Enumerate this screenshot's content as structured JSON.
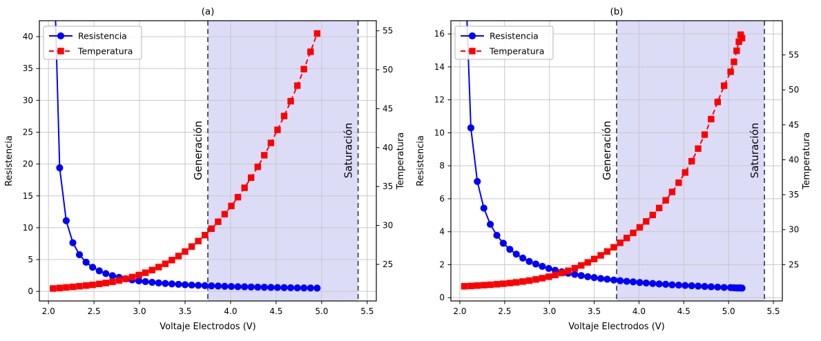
{
  "figure": {
    "background": "#ffffff"
  },
  "colors": {
    "resistencia": "#0000ff",
    "temperatura": "#ff0000",
    "shaded_region": "#dcdcf7",
    "dashed_line": "#3c3c50",
    "grid": "#c8c8c8",
    "spine": "#000000",
    "legend_border": "#b5b5b5"
  },
  "chart_data": [
    {
      "id": "a",
      "type": "line",
      "title": "(a)",
      "xlabel": "Voltaje Electrodos (V)",
      "ylabel_left": "Resistencia",
      "ylabel_right": "Temperatura",
      "xlim": [
        1.9,
        5.6
      ],
      "xticks": [
        2.0,
        2.5,
        3.0,
        3.5,
        4.0,
        4.5,
        5.0,
        5.5
      ],
      "xtick_labels": [
        "2.0",
        "2.5",
        "3.0",
        "3.5",
        "4.0",
        "4.5",
        "5.0",
        "5.5"
      ],
      "ylim_left": [
        -1.5,
        42.5
      ],
      "yticks_left": [
        0,
        5,
        10,
        15,
        20,
        25,
        30,
        35,
        40
      ],
      "ytick_left_labels": [
        "0",
        "5",
        "10",
        "15",
        "20",
        "25",
        "30",
        "35",
        "40"
      ],
      "ylim_right": [
        20.3,
        56.3
      ],
      "yticks_right": [
        25,
        30,
        35,
        40,
        45,
        50,
        55
      ],
      "ytick_right_labels": [
        "25",
        "30",
        "35",
        "40",
        "45",
        "50",
        "55"
      ],
      "grid": true,
      "legend": {
        "position": "upper-left",
        "entries": [
          "Resistencia",
          "Temperatura"
        ]
      },
      "annotations": {
        "generation_line": {
          "x": 3.75,
          "label": "Generación"
        },
        "saturation_line": {
          "x": 5.4,
          "label": "Saturación"
        },
        "shaded_region": {
          "x0": 3.75,
          "x1": 5.4
        }
      },
      "series": [
        {
          "name": "Resistencia",
          "axis": "left",
          "color": "#0000ff",
          "marker": "circle",
          "line": "solid",
          "x": [
            2.05,
            2.123,
            2.195,
            2.268,
            2.34,
            2.413,
            2.485,
            2.558,
            2.63,
            2.703,
            2.775,
            2.848,
            2.92,
            2.993,
            3.065,
            3.138,
            3.21,
            3.283,
            3.355,
            3.428,
            3.5,
            3.573,
            3.645,
            3.718,
            3.79,
            3.863,
            3.935,
            4.008,
            4.08,
            4.153,
            4.225,
            4.298,
            4.37,
            4.443,
            4.515,
            4.588,
            4.66,
            4.733,
            4.805,
            4.878,
            4.95
          ],
          "y": [
            56.9,
            19.4,
            11.1,
            7.64,
            5.76,
            4.58,
            3.79,
            3.23,
            2.8,
            2.47,
            2.2,
            1.99,
            1.81,
            1.66,
            1.54,
            1.43,
            1.33,
            1.25,
            1.18,
            1.11,
            1.05,
            1.0,
            0.95,
            0.91,
            0.87,
            0.84,
            0.8,
            0.77,
            0.74,
            0.72,
            0.69,
            0.67,
            0.65,
            0.63,
            0.61,
            0.6,
            0.58,
            0.56,
            0.55,
            0.54,
            0.52
          ]
        },
        {
          "name": "Temperatura",
          "axis": "right",
          "color": "#ff0000",
          "marker": "square",
          "line": "dashed",
          "x": [
            2.05,
            2.123,
            2.195,
            2.268,
            2.34,
            2.413,
            2.485,
            2.558,
            2.63,
            2.703,
            2.775,
            2.848,
            2.92,
            2.993,
            3.065,
            3.138,
            3.21,
            3.283,
            3.355,
            3.428,
            3.5,
            3.573,
            3.645,
            3.718,
            3.79,
            3.863,
            3.935,
            4.008,
            4.08,
            4.153,
            4.225,
            4.298,
            4.37,
            4.443,
            4.515,
            4.588,
            4.66,
            4.733,
            4.805,
            4.878,
            4.95
          ],
          "y": [
            21.9,
            21.97,
            22.04,
            22.11,
            22.19,
            22.28,
            22.37,
            22.49,
            22.61,
            22.76,
            22.94,
            23.14,
            23.37,
            23.63,
            23.93,
            24.27,
            24.65,
            25.07,
            25.55,
            26.07,
            26.65,
            27.29,
            27.99,
            28.75,
            29.58,
            30.48,
            31.45,
            32.5,
            33.63,
            34.84,
            36.14,
            37.53,
            39.02,
            40.6,
            42.28,
            44.06,
            45.96,
            47.96,
            50.08,
            52.31,
            54.66
          ]
        }
      ]
    },
    {
      "id": "b",
      "type": "line",
      "title": "(b)",
      "xlabel": "Voltaje Electrodos (V)",
      "ylabel_left": "Resistencia",
      "ylabel_right": "Temperatura",
      "xlim": [
        1.9,
        5.6
      ],
      "xticks": [
        2.0,
        2.5,
        3.0,
        3.5,
        4.0,
        4.5,
        5.0,
        5.5
      ],
      "xtick_labels": [
        "2.0",
        "2.5",
        "3.0",
        "3.5",
        "4.0",
        "4.5",
        "5.0",
        "5.5"
      ],
      "ylim_left": [
        -0.2,
        16.8
      ],
      "yticks_left": [
        0,
        2,
        4,
        6,
        8,
        10,
        12,
        14,
        16
      ],
      "ytick_left_labels": [
        "0",
        "2",
        "4",
        "6",
        "8",
        "10",
        "12",
        "14",
        "16"
      ],
      "ylim_right": [
        19.8,
        59.9
      ],
      "yticks_right": [
        25,
        30,
        35,
        40,
        45,
        50,
        55
      ],
      "ytick_right_labels": [
        "25",
        "30",
        "35",
        "40",
        "45",
        "50",
        "55"
      ],
      "grid": true,
      "legend": {
        "position": "upper-left",
        "entries": [
          "Resistencia",
          "Temperatura"
        ]
      },
      "annotations": {
        "generation_line": {
          "x": 3.75,
          "label": "Generación"
        },
        "saturation_line": {
          "x": 5.4,
          "label": "Saturación"
        },
        "shaded_region": {
          "x0": 3.75,
          "x1": 5.4
        }
      },
      "series": [
        {
          "name": "Resistencia",
          "axis": "left",
          "color": "#0000ff",
          "marker": "circle",
          "line": "solid",
          "x": [
            2.05,
            2.123,
            2.195,
            2.268,
            2.34,
            2.413,
            2.485,
            2.558,
            2.63,
            2.703,
            2.775,
            2.848,
            2.92,
            2.993,
            3.065,
            3.138,
            3.21,
            3.283,
            3.355,
            3.428,
            3.5,
            3.573,
            3.645,
            3.718,
            3.79,
            3.863,
            3.935,
            4.008,
            4.08,
            4.153,
            4.225,
            4.298,
            4.37,
            4.443,
            4.515,
            4.588,
            4.66,
            4.733,
            4.805,
            4.878,
            4.95,
            5.023,
            5.06,
            5.09,
            5.115,
            5.135,
            5.15
          ],
          "y": [
            21.3,
            10.3,
            7.05,
            5.43,
            4.45,
            3.78,
            3.3,
            2.93,
            2.64,
            2.4,
            2.2,
            2.04,
            1.9,
            1.77,
            1.66,
            1.57,
            1.48,
            1.41,
            1.34,
            1.27,
            1.22,
            1.16,
            1.12,
            1.07,
            1.03,
            0.99,
            0.96,
            0.92,
            0.89,
            0.86,
            0.83,
            0.81,
            0.78,
            0.76,
            0.74,
            0.72,
            0.7,
            0.68,
            0.66,
            0.64,
            0.62,
            0.61,
            0.6,
            0.59,
            0.59,
            0.59,
            0.58
          ]
        },
        {
          "name": "Temperatura",
          "axis": "right",
          "color": "#ff0000",
          "marker": "square",
          "line": "dashed",
          "x": [
            2.05,
            2.123,
            2.195,
            2.268,
            2.34,
            2.413,
            2.485,
            2.558,
            2.63,
            2.703,
            2.775,
            2.848,
            2.92,
            2.993,
            3.065,
            3.138,
            3.21,
            3.283,
            3.355,
            3.428,
            3.5,
            3.573,
            3.645,
            3.718,
            3.79,
            3.863,
            3.935,
            4.008,
            4.08,
            4.153,
            4.225,
            4.298,
            4.37,
            4.443,
            4.515,
            4.588,
            4.66,
            4.733,
            4.805,
            4.878,
            4.95,
            5.023,
            5.06,
            5.09,
            5.115,
            5.135,
            5.15
          ],
          "y": [
            21.9,
            21.95,
            22.0,
            22.06,
            22.12,
            22.19,
            22.27,
            22.36,
            22.46,
            22.58,
            22.72,
            22.88,
            23.06,
            23.27,
            23.52,
            23.8,
            24.12,
            24.48,
            24.88,
            25.32,
            25.8,
            26.32,
            26.88,
            27.48,
            28.12,
            28.81,
            29.54,
            30.33,
            31.18,
            32.1,
            33.1,
            34.2,
            35.4,
            36.72,
            38.18,
            39.8,
            41.6,
            43.6,
            45.82,
            48.28,
            50.6,
            52.6,
            54.0,
            55.6,
            56.9,
            57.9,
            57.4
          ]
        }
      ]
    }
  ]
}
